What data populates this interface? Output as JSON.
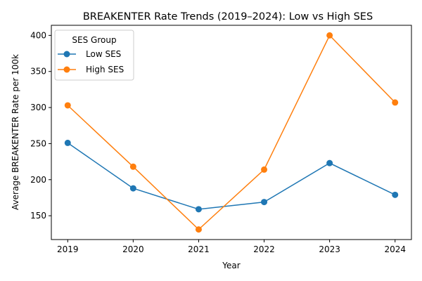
{
  "chart_data": {
    "type": "line",
    "title": "BREAKENTER Rate Trends (2019–2024): Low vs High SES",
    "xlabel": "Year",
    "ylabel": "Average BREAKENTER Rate per 100k",
    "x": [
      2019,
      2020,
      2021,
      2022,
      2023,
      2024
    ],
    "x_tick_labels": [
      "2019",
      "2020",
      "2021",
      "2022",
      "2023",
      "2024"
    ],
    "ylim": [
      117,
      414
    ],
    "y_ticks": [
      150,
      200,
      250,
      300,
      350,
      400
    ],
    "y_tick_labels": [
      "150",
      "200",
      "250",
      "300",
      "350",
      "400"
    ],
    "grid": false,
    "legend": {
      "title": "SES Group",
      "placement": "top-left"
    },
    "series": [
      {
        "name": "Low SES",
        "color": "#1f77b4",
        "marker": "circle",
        "values": [
          251,
          188,
          159,
          169,
          223,
          179
        ]
      },
      {
        "name": "High SES",
        "color": "#ff7f0e",
        "marker": "circle",
        "values": [
          303,
          218,
          131,
          214,
          400,
          307
        ]
      }
    ]
  }
}
